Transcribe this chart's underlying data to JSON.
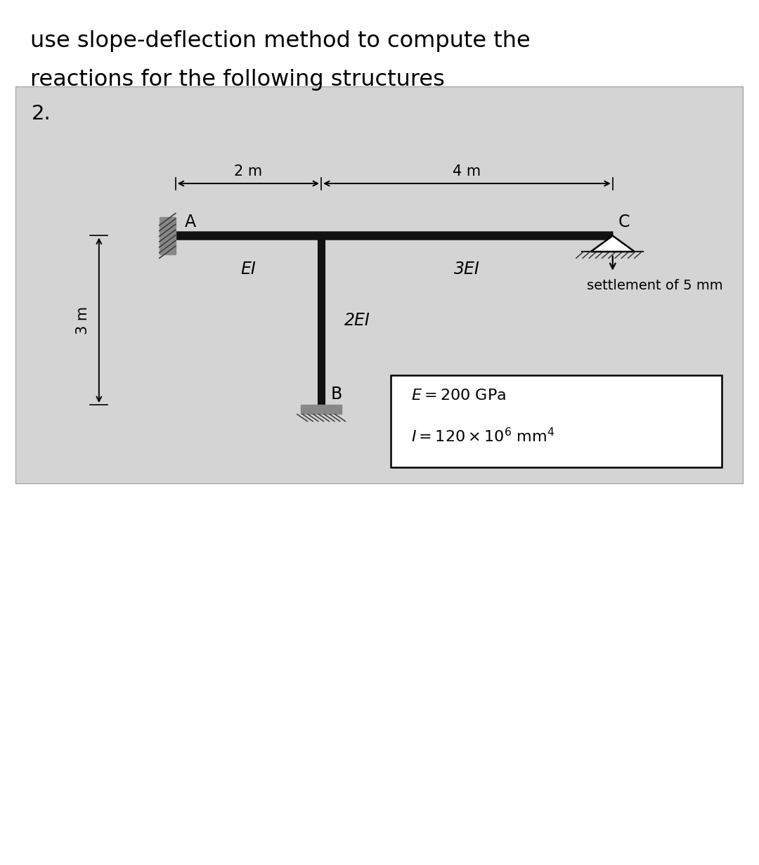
{
  "title_line1": "use slope-deflection method to compute the",
  "title_line2": "reactions for the following structures",
  "problem_number": "2.",
  "title_fontsize": 23,
  "bg_color": "#d4d4d4",
  "beam_color": "#111111",
  "beam_lw": 9,
  "col_lw": 8,
  "label_EI": "EI",
  "label_3EI": "3EI",
  "label_2EI": "2EI",
  "label_A": "A",
  "label_B": "B",
  "label_C": "C",
  "dim_2m": "2 m",
  "dim_4m": "4 m",
  "dim_3m": "3 m",
  "settlement_text": "settlement of 5 mm",
  "E_text": "$E = 200$ GPa",
  "I_text": "$I = 120 \\times 10^6$ mm$^4$",
  "hatch_color": "#444444",
  "wall_color": "#888888"
}
